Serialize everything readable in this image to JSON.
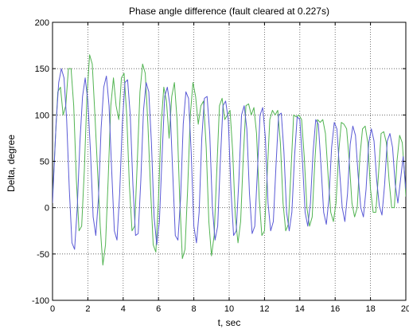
{
  "chart_data": {
    "type": "line",
    "title": "Phase angle difference (fault cleared at 0.227s)",
    "xlabel": "t, sec",
    "ylabel": "Delta, degree",
    "xlim": [
      0,
      20
    ],
    "ylim": [
      -100,
      200
    ],
    "xticks": [
      0,
      2,
      4,
      6,
      8,
      10,
      12,
      14,
      16,
      18,
      20
    ],
    "yticks": [
      -100,
      -50,
      0,
      50,
      100,
      150,
      200
    ],
    "grid": true,
    "grid_style": "dotted",
    "series": [
      {
        "color": "#5a5ad6",
        "x": [
          0,
          0.2,
          0.35,
          0.5,
          0.65,
          0.8,
          0.95,
          1.1,
          1.25,
          1.4,
          1.55,
          1.7,
          1.85,
          2.0,
          2.15,
          2.3,
          2.45,
          2.6,
          2.75,
          2.9,
          3.05,
          3.2,
          3.35,
          3.5,
          3.65,
          3.8,
          3.95,
          4.1,
          4.25,
          4.4,
          4.55,
          4.7,
          4.85,
          5.0,
          5.15,
          5.3,
          5.45,
          5.6,
          5.75,
          5.9,
          6.05,
          6.2,
          6.35,
          6.5,
          6.65,
          6.8,
          6.95,
          7.1,
          7.25,
          7.4,
          7.55,
          7.7,
          7.85,
          8.0,
          8.15,
          8.3,
          8.45,
          8.6,
          8.75,
          8.9,
          9.05,
          9.2,
          9.35,
          9.5,
          9.65,
          9.8,
          9.95,
          10.1,
          10.25,
          10.4,
          10.55,
          10.7,
          10.85,
          11.0,
          11.15,
          11.3,
          11.45,
          11.6,
          11.75,
          11.9,
          12.05,
          12.2,
          12.35,
          12.5,
          12.65,
          12.8,
          12.95,
          13.1,
          13.25,
          13.4,
          13.55,
          13.7,
          13.85,
          14.0,
          14.15,
          14.3,
          14.45,
          14.6,
          14.75,
          14.9,
          15.05,
          15.2,
          15.35,
          15.5,
          15.65,
          15.8,
          15.95,
          16.1,
          16.25,
          16.4,
          16.55,
          16.7,
          16.85,
          17.0,
          17.15,
          17.3,
          17.45,
          17.6,
          17.75,
          17.9,
          18.05,
          18.2,
          18.35,
          18.5,
          18.65,
          18.8,
          18.95,
          19.1,
          19.25,
          19.4,
          19.55,
          19.7,
          19.85,
          20.0
        ],
        "y": [
          5,
          90,
          135,
          150,
          140,
          95,
          20,
          -38,
          -45,
          0,
          70,
          120,
          140,
          115,
          60,
          -10,
          -30,
          10,
          85,
          130,
          142,
          110,
          40,
          -25,
          -35,
          15,
          90,
          135,
          138,
          100,
          25,
          -30,
          -28,
          30,
          105,
          135,
          125,
          70,
          -10,
          -40,
          -15,
          55,
          120,
          130,
          110,
          40,
          -30,
          -35,
          10,
          90,
          125,
          118,
          60,
          -20,
          -38,
          -5,
          75,
          118,
          120,
          80,
          0,
          -35,
          -20,
          50,
          110,
          115,
          95,
          20,
          -30,
          -25,
          30,
          100,
          110,
          85,
          15,
          -28,
          -20,
          40,
          100,
          108,
          75,
          5,
          -25,
          -15,
          45,
          100,
          102,
          60,
          -5,
          -25,
          -5,
          55,
          98,
          95,
          50,
          -5,
          -20,
          5,
          60,
          95,
          90,
          45,
          -5,
          -18,
          10,
          65,
          92,
          85,
          40,
          0,
          -15,
          15,
          68,
          88,
          78,
          35,
          0,
          -10,
          20,
          70,
          85,
          72,
          30,
          2,
          -8,
          25,
          72,
          80,
          65,
          25,
          5,
          30,
          55,
          20
        ]
      },
      {
        "color": "#52b452",
        "x": [
          0,
          0.15,
          0.3,
          0.45,
          0.6,
          0.75,
          0.9,
          1.05,
          1.2,
          1.35,
          1.5,
          1.65,
          1.8,
          1.95,
          2.1,
          2.25,
          2.4,
          2.55,
          2.7,
          2.85,
          3.0,
          3.15,
          3.3,
          3.45,
          3.6,
          3.75,
          3.9,
          4.05,
          4.2,
          4.35,
          4.5,
          4.65,
          4.8,
          4.95,
          5.1,
          5.25,
          5.4,
          5.55,
          5.7,
          5.85,
          6.0,
          6.15,
          6.3,
          6.45,
          6.6,
          6.75,
          6.9,
          7.05,
          7.2,
          7.35,
          7.5,
          7.65,
          7.8,
          7.95,
          8.1,
          8.25,
          8.4,
          8.55,
          8.7,
          8.85,
          9.0,
          9.15,
          9.3,
          9.45,
          9.6,
          9.75,
          9.9,
          10.05,
          10.2,
          10.35,
          10.5,
          10.65,
          10.8,
          10.95,
          11.1,
          11.25,
          11.4,
          11.55,
          11.7,
          11.85,
          12.0,
          12.15,
          12.3,
          12.45,
          12.6,
          12.75,
          12.9,
          13.05,
          13.2,
          13.35,
          13.5,
          13.65,
          13.8,
          13.95,
          14.1,
          14.25,
          14.4,
          14.55,
          14.7,
          14.85,
          15.0,
          15.15,
          15.3,
          15.45,
          15.6,
          15.75,
          15.9,
          16.05,
          16.2,
          16.35,
          16.5,
          16.65,
          16.8,
          16.95,
          17.1,
          17.25,
          17.4,
          17.55,
          17.7,
          17.85,
          18.0,
          18.15,
          18.3,
          18.45,
          18.6,
          18.75,
          18.9,
          19.05,
          19.2,
          19.35,
          19.5,
          19.65,
          19.8,
          19.95,
          20.0
        ],
        "y": [
          10,
          70,
          125,
          130,
          100,
          110,
          150,
          150,
          110,
          30,
          -25,
          -20,
          40,
          120,
          165,
          155,
          100,
          40,
          -20,
          -62,
          -40,
          30,
          110,
          140,
          110,
          95,
          140,
          145,
          100,
          25,
          -25,
          -20,
          50,
          125,
          155,
          145,
          90,
          20,
          -40,
          -48,
          10,
          90,
          130,
          115,
          75,
          120,
          135,
          95,
          10,
          -55,
          -45,
          20,
          100,
          135,
          120,
          90,
          110,
          115,
          65,
          -15,
          -52,
          -30,
          40,
          110,
          118,
          95,
          100,
          105,
          60,
          -10,
          -38,
          -15,
          55,
          110,
          112,
          100,
          108,
          80,
          10,
          -30,
          -25,
          35,
          95,
          105,
          100,
          105,
          70,
          5,
          -25,
          -18,
          40,
          100,
          98,
          100,
          95,
          55,
          0,
          -20,
          -10,
          50,
          95,
          92,
          95,
          80,
          35,
          -5,
          -15,
          5,
          60,
          92,
          90,
          85,
          50,
          5,
          -10,
          0,
          55,
          85,
          88,
          70,
          20,
          -5,
          -5,
          35,
          80,
          82,
          70,
          30,
          0,
          0,
          50,
          78,
          70,
          30,
          12
        ]
      }
    ]
  }
}
